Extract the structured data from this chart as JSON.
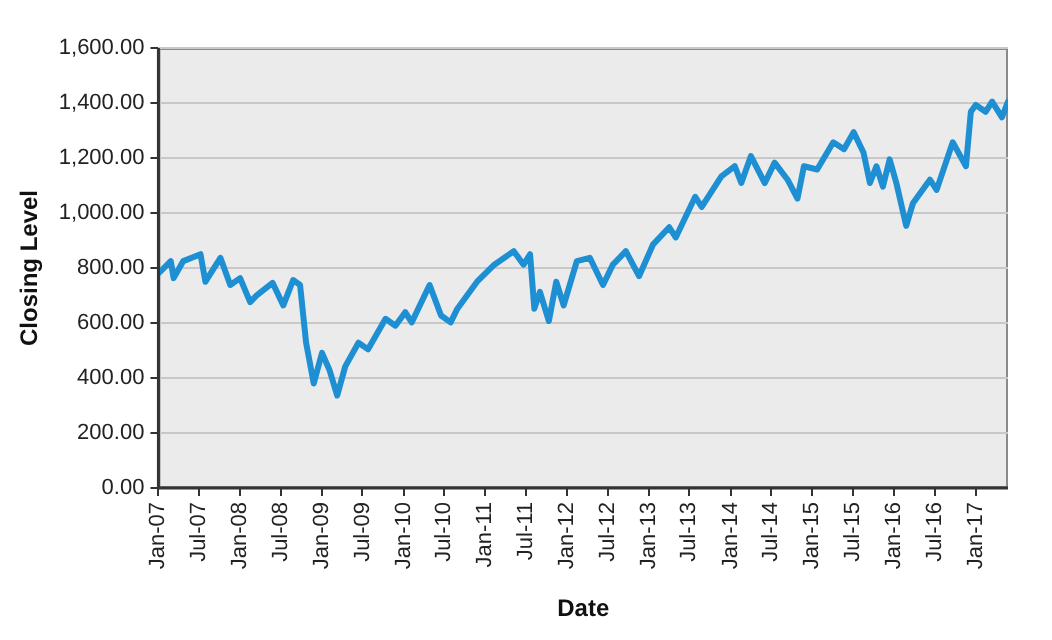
{
  "chart_data": {
    "type": "line",
    "xlabel": "Date",
    "ylabel": "Closing Level",
    "x": [
      "2007-01-01",
      "2007-02-25",
      "2007-03-10",
      "2007-04-22",
      "2007-07-08",
      "2007-07-30",
      "2007-10-05",
      "2007-11-18",
      "2008-01-01",
      "2008-02-15",
      "2008-03-15",
      "2008-05-25",
      "2008-07-12",
      "2008-08-25",
      "2008-09-25",
      "2008-10-22",
      "2008-11-25",
      "2009-01-01",
      "2009-02-03",
      "2009-03-10",
      "2009-04-15",
      "2009-06-13",
      "2009-07-26",
      "2009-10-12",
      "2009-11-25",
      "2010-01-08",
      "2010-02-06",
      "2010-04-27",
      "2010-06-17",
      "2010-07-30",
      "2010-08-29",
      "2010-11-25",
      "2011-02-10",
      "2011-05-08",
      "2011-06-21",
      "2011-07-20",
      "2011-08-08",
      "2011-09-02",
      "2011-10-12",
      "2011-11-14",
      "2011-12-17",
      "2012-02-14",
      "2012-04-12",
      "2012-06-10",
      "2012-07-24",
      "2012-09-20",
      "2012-11-18",
      "2013-01-20",
      "2013-04-02",
      "2013-05-01",
      "2013-07-27",
      "2013-08-25",
      "2013-11-21",
      "2014-01-20",
      "2014-02-18",
      "2014-04-02",
      "2014-06-03",
      "2014-07-17",
      "2014-09-13",
      "2014-10-27",
      "2014-11-25",
      "2015-01-23",
      "2015-04-05",
      "2015-05-23",
      "2015-07-05",
      "2015-08-18",
      "2015-09-16",
      "2015-10-15",
      "2015-11-13",
      "2015-12-13",
      "2016-01-12",
      "2016-02-25",
      "2016-03-26",
      "2016-06-10",
      "2016-07-10",
      "2016-09-20",
      "2016-11-18",
      "2016-12-10",
      "2017-01-01",
      "2017-02-14",
      "2017-03-15",
      "2017-04-28",
      "2017-05-25"
    ],
    "series": [
      {
        "color": "#1e8fd2",
        "values": [
          780,
          825,
          763,
          825,
          850,
          750,
          837,
          738,
          763,
          676,
          700,
          746,
          664,
          756,
          738,
          528,
          380,
          491,
          430,
          336,
          442,
          528,
          504,
          615,
          590,
          639,
          602,
          738,
          627,
          602,
          652,
          750,
          812,
          861,
          812,
          850,
          652,
          713,
          607,
          750,
          664,
          825,
          837,
          738,
          812,
          861,
          770,
          886,
          948,
          911,
          1059,
          1022,
          1133,
          1170,
          1109,
          1207,
          1109,
          1183,
          1121,
          1052,
          1170,
          1158,
          1257,
          1232,
          1294,
          1220,
          1109,
          1170,
          1096,
          1195,
          1109,
          953,
          1035,
          1121,
          1084,
          1257,
          1170,
          1368,
          1393,
          1368,
          1405,
          1348,
          1405
        ]
      }
    ],
    "xlim": [
      "2007-01-01",
      "2017-05-25"
    ],
    "xticks": [
      {
        "value": "2007-01-01",
        "label": "Jan-07"
      },
      {
        "value": "2007-07-01",
        "label": "Jul-07"
      },
      {
        "value": "2008-01-01",
        "label": "Jan-08"
      },
      {
        "value": "2008-07-01",
        "label": "Jul-08"
      },
      {
        "value": "2009-01-01",
        "label": "Jan-09"
      },
      {
        "value": "2009-07-01",
        "label": "Jul-09"
      },
      {
        "value": "2010-01-01",
        "label": "Jan-10"
      },
      {
        "value": "2010-07-01",
        "label": "Jul-10"
      },
      {
        "value": "2011-01-01",
        "label": "Jan-11"
      },
      {
        "value": "2011-07-01",
        "label": "Jul-11"
      },
      {
        "value": "2012-01-01",
        "label": "Jan-12"
      },
      {
        "value": "2012-07-01",
        "label": "Jul-12"
      },
      {
        "value": "2013-01-01",
        "label": "Jan-13"
      },
      {
        "value": "2013-07-01",
        "label": "Jul-13"
      },
      {
        "value": "2014-01-01",
        "label": "Jan-14"
      },
      {
        "value": "2014-07-01",
        "label": "Jul-14"
      },
      {
        "value": "2015-01-01",
        "label": "Jan-15"
      },
      {
        "value": "2015-07-01",
        "label": "Jul-15"
      },
      {
        "value": "2016-01-01",
        "label": "Jan-16"
      },
      {
        "value": "2016-07-01",
        "label": "Jul-16"
      },
      {
        "value": "2017-01-01",
        "label": "Jan-17"
      }
    ],
    "ylim": [
      0,
      1600
    ],
    "yticks": [
      {
        "value": 0,
        "label": "0.00"
      },
      {
        "value": 200,
        "label": "200.00"
      },
      {
        "value": 400,
        "label": "400.00"
      },
      {
        "value": 600,
        "label": "600.00"
      },
      {
        "value": 800,
        "label": "800.00"
      },
      {
        "value": 1000,
        "label": "1,000.00"
      },
      {
        "value": 1200,
        "label": "1,200.00"
      },
      {
        "value": 1400,
        "label": "1,400.00"
      },
      {
        "value": 1600,
        "label": "1,600.00"
      }
    ],
    "grid": "y",
    "marker": "none",
    "line_style": "solid"
  }
}
